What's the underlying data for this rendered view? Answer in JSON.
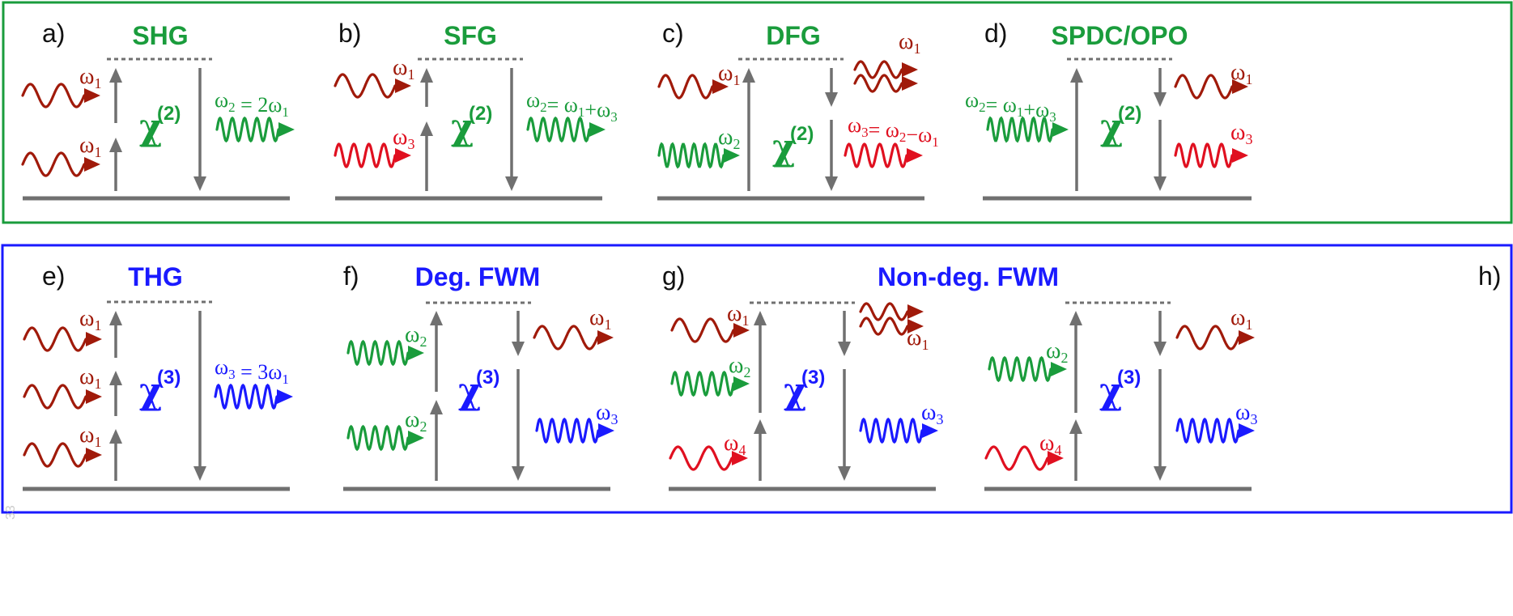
{
  "colors": {
    "green": "#1a9c3c",
    "blue": "#1a1aff",
    "dark_red": "#a01a0a",
    "red": "#e01020",
    "gray": "#707070"
  },
  "panels": [
    {
      "letter": "a)",
      "title": "SHG",
      "chi": "χ",
      "chi_order": "(2)",
      "equation": "ω2 = 2ω1"
    },
    {
      "letter": "b)",
      "title": "SFG",
      "chi": "χ",
      "chi_order": "(2)",
      "equation": "ω2= ω1+ω3"
    },
    {
      "letter": "c)",
      "title": "DFG",
      "chi": "χ",
      "chi_order": "(2)",
      "equation": "ω3= ω2−ω1"
    },
    {
      "letter": "d)",
      "title": "SPDC/OPO",
      "chi": "χ",
      "chi_order": "(2)",
      "equation": "ω2= ω1+ω3"
    },
    {
      "letter": "e)",
      "title": "THG",
      "chi": "χ",
      "chi_order": "(3)",
      "equation": "ω3 = 3ω1"
    },
    {
      "letter": "f)",
      "title": "Deg. FWM",
      "chi": "χ",
      "chi_order": "(3)",
      "equation": ""
    },
    {
      "letter": "g)",
      "title": "Non-deg. FWM",
      "chi": "χ",
      "chi_order": "(3)",
      "equation": ""
    },
    {
      "letter": "h)",
      "title": "",
      "chi": "χ",
      "chi_order": "(3)",
      "equation": ""
    }
  ],
  "wave_labels": {
    "w1": "ω1",
    "w2": "ω2",
    "w3": "ω3",
    "w4": "ω4"
  },
  "watermark": "33"
}
